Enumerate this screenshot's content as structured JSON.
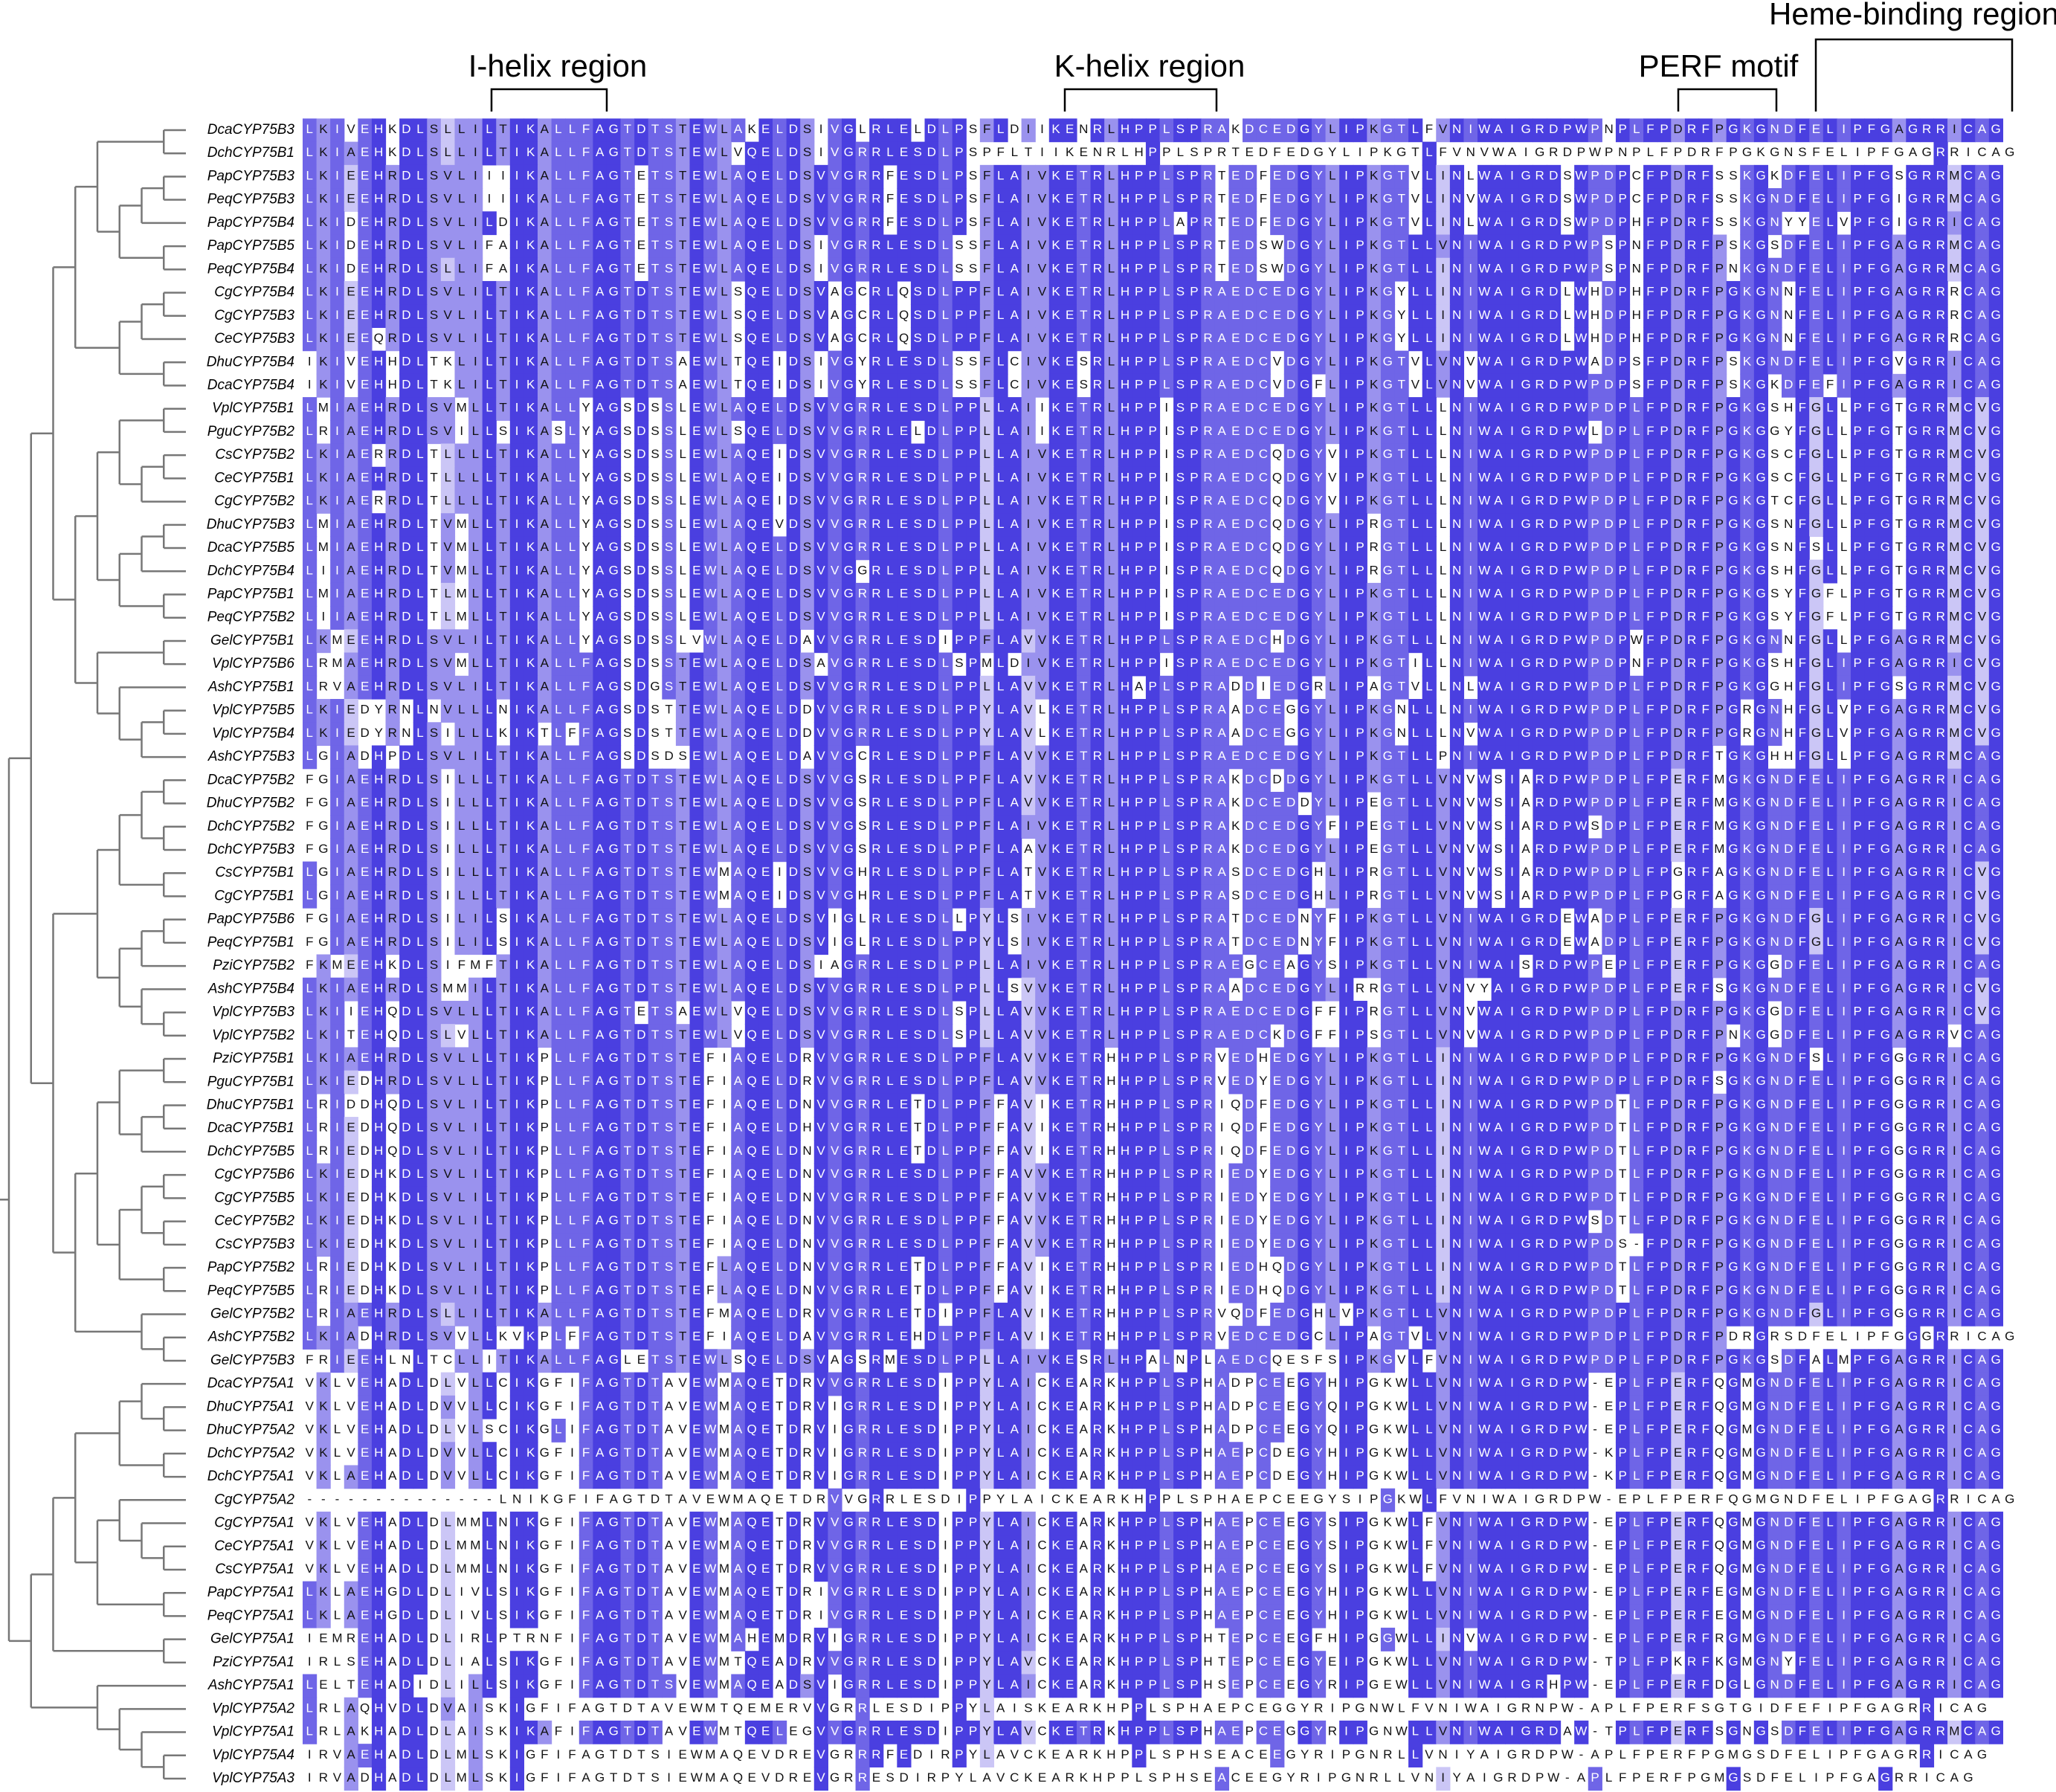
{
  "regions": [
    {
      "label": "I-helix region"
    },
    {
      "label": "K-helix region"
    },
    {
      "label": "PERF motif"
    },
    {
      "label": "Heme-binding region"
    }
  ],
  "alignment": {
    "rows": [
      {
        "name": "DcaCYP75B3",
        "sequence": "LKIVEHKDLSLLILTIKALLFAGTDTSTEWLAKELDSIVGLRLELDLPSFLDIIKENRLHPPLSPRAKDCEDGYLIPKGTLFVNIWAIGRDPWPNPLFPDRFPGKGNDFELIPFGAGRRICAG"
      },
      {
        "name": "DchCYP75B1",
        "sequence": "LKIAEHKDLSLLILTIKALLFAGTDTSTEWLVQELDSIVGRRLESDLPSPFLTIIKENRLHPPLSPRTEDFEDGYLIPKGTLFVNVWAIGRDPWPNPLFPDRFPGKGNSFELIPFGAGRRICAG"
      },
      {
        "name": "PapCYP75B3",
        "sequence": "LKIEEHRDLSVLIIIIKALLFAGTETSTEWLAQELDSVVGRRFESDLPSFLAIVKETRLHPPLSPRTEDFEDGYLIPKGTVLINLWAIGRDSWPDPCFPDRFSSKGKDFELIPFGSGRRMCAG"
      },
      {
        "name": "PeqCYP75B3",
        "sequence": "LKIEEHRDLSVLIIIIKALLFAGTETSTEWLAQELDSVVGRRFESDLPSFLAIVKETRLHPPLSPRTEDFEDGYLIPKGTVLINVWAIGRDSWPDPCFPDRFSSKGNDFELIPFGIGRRMCAG"
      },
      {
        "name": "PapCYP75B4",
        "sequence": "LKIDEHRDLSVLILDIKALLFAGTETSTEWLAQELDSVVGRRFESDLPSFLAIVKETRLHPPLAPRTEDFEDGYLIPKGTVLINLWAIGRDSWPDPHFPDRFSSKGNYYELVPFGIGRRICAG"
      },
      {
        "name": "PapCYP75B5",
        "sequence": "LKIDEHRDLSVLIFAIKALLFAGTETSTEWLAQELDSIVGRRLESDLSSFLAIVKETRLHPPLSPRTEDSWDGYLIPKGTLLVNIWAIGRDPWPSPNFPDRFPSKGSDFELIPFGAGRRMCAG"
      },
      {
        "name": "PeqCYP75B4",
        "sequence": "LKIDEHRDLSLLIFAIKALLFAGTETSTEWLAQELDSIVGRRLESDLSSFLAIVKETRLHPPLSPRTEDSWDGYLIPKGTLLINIWAIGRDPWPSPNFPDRFPNKGNDFELIPFGAGRRMCAG"
      },
      {
        "name": "CgCYP75B4",
        "sequence": "LKIEEHRDLSVLILTIKALLFAGTDTSTEWLSQELDSVAGCRLQSDLPPFLAIVKETRLHPPLSPRAEDCEDGYLIPKGYLLINIWAIGRDLWHDPHFPDRFPGKGNNFELIPFGAGRRRCAG"
      },
      {
        "name": "CgCYP75B3",
        "sequence": "LKIEEHRDLSVLILTIKALLFAGTDTSTEWLSQELDSVAGCRLQSDLPPFLAIVKETRLHPPLSPRAEDCEDGYLIPKGYLLINIWAIGRDLWHDPHFPDRFPGKGNNFELIPFGAGRRRCAG"
      },
      {
        "name": "CeCYP75B3",
        "sequence": "LKIEEQRDLSVLILTIKALLFAGTDTSTEWLSQELDSVAGCRLQSDLPPFLAIVKETRLHPPLSPRAEDCEDGYLIPKGYLLINIWAIGRDLWHDPHFPDRFPGKGNNFELIPFGAGRRRCAG"
      },
      {
        "name": "DhuCYP75B4",
        "sequence": "IKIVEHHDLTKLILTIKALLFAGTDTSAEWLTQEIDSIVGYRLESDLSSFLCIVKESRLHPPLSPRAEDCVDGYLIPKGTVLVNVWAIGRDPWADPSFPDRFPSKGNDFELIPFGVGRRICAG"
      },
      {
        "name": "DcaCYP75B4",
        "sequence": "IKIVEHHDLTKLILTIKALLFAGTDTSAEWLTQEIDSIVGYRLESDLSSFLCIVKESRLHPPLSPRAEDCVDGFLIPKGTVLVNVWAIGRDPWPDPSFPDRFPSKGKDFEFIPFGAGRRICAG"
      },
      {
        "name": "VplCYP75B1",
        "sequence": "LMIAEHRDLSVMLLTIKALLYAGSDSSLEWLAQELDSVVGRRLESDLPPLLAIIKETRLHPPISPRAEDCEDGYLIPKGTLLLNIWAIGRDPWPDPLFPDRFPGKGSHFGLLPFGTGRRMCVG"
      },
      {
        "name": "PguCYP75B2",
        "sequence": "LRIAEHRDLSVILLSIKASLYAGSDSSLEWLSQELDSVVGRRLELDLPPLLAIIKETRLHPPISPRAEDCEDGYLIPKGTLLLNIWAIGRDPWLDPLFPDRFPGKGGYFGLLPFGTGRRMCVG"
      },
      {
        "name": "CsCYP75B2",
        "sequence": "LKIAERRDLTLLLLTIKALLYAGSDSSLEWLAQEIDSVVGRRLESDLPPLLAIVKETRLHPPISPRAEDCQDGYVIPKGTLLLNIWAIGRDPWPDPLFPDRFPGKGSCFGLLPFGTGRRMCVG"
      },
      {
        "name": "CeCYP75B1",
        "sequence": "LKIAEHRDLTLLLLTIKALLYAGSDSSLEWLAQEIDSVVGRRLESDLPPLLAIVKETRLHPPISPRAEDCQDGYVIPKGTLLLNIWAIGRDPWPDPLFPDRFPGKGSCFGLLPFGTGRRMCVG"
      },
      {
        "name": "CgCYP75B2",
        "sequence": "LKIAERRDLTLLLLTIKALLYAGSDSSLEWLAQEIDSVVGRRLESDLPPLLAIVKETRLHPPISPRAEDCQDGYVIPKGTLLLNIWAIGRDPWPDPLFPDRFPGKGTCFGLLPFGTGRRMCVG"
      },
      {
        "name": "DhuCYP75B3",
        "sequence": "LMIAEHRDLTVMLLTIKALLYAGSDSSLEWLAQEVDSVVGRRLESDLPPLLAIVKETRLHPPISPRAEDCQDGYLIPRGTLLLNIWAIGRDPWPDPLFPDRFPGKGSNFGLLPFGTGRRMCVG"
      },
      {
        "name": "DcaCYP75B5",
        "sequence": "LMIAEHRDLTVMLLTIKALLYAGSDSSLEWLAQELDSVVGRRLESDLPPLLAIVKETRLHPPISPRAEDCQDGYLIPRGTLLLNIWAIGRDPWPDPLFPDRFPGKGSNFSLLPFGTGRRMCVG"
      },
      {
        "name": "DchCYP75B4",
        "sequence": "LIIAEHRDLTVMLLTIKALLYAGSDSSLEWLAQELDSVVGGRLESDLPPLLAIVKETRLHPPISPRAEDCQDGYLIPRGTLLLNIWAIGRDPWPDPLFPDRFPGKGSHFGLLPFGTGRRMCVG"
      },
      {
        "name": "PapCYP75B1",
        "sequence": "LMIAEHRDLTLMLLTIKALLYAGSDSSLEWLAQELDSVVGRRLESDLPPLLAIVKETRLHPPISPRAEDCEDGYLIPKGTLLLNIWAIGRDPWPDPLFPDRFPGKGSYFGFLPFGTGRRMCVG"
      },
      {
        "name": "PeqCYP75B2",
        "sequence": "LIIAEHRDLTLMLLTIKALLYAGSDSSLEWLAQELDSVVGRRLESDLPPLLAIVKETRLHPPISPRAEDCEDGYLIPKGTLLLNIWAIGRDPWPDPLFPDRFPGKGSYFGFLPFGTGRRMCVG"
      },
      {
        "name": "GelCYP75B1",
        "sequence": "LKMEEHRDLSVLILTIKALLYAGSDSSLVWLAQELDAVVGRRLESDIPPFLAVVKETRLHPPLSPRAEDCHDGYLIPKGTLLLNIWAIGRDPWPDPWFPDRFPGKGNNFGLLPFGAGRRMCVG"
      },
      {
        "name": "VplCYP75B6",
        "sequence": "LRMAEHRDLSVMLLTIKALLFAGSDSSTEWLAQELDSAVGRRLESDLSPMLDIVKETRLHPPISPRAEDCEDGYLIPKGTILLNIWAIGRDPWPDPNFPDRFPGKGSHFGLIPFGAGRRICVG"
      },
      {
        "name": "AshCYP75B1",
        "sequence": "LRVAEHRDLSVLILTIKALLFAGSDGSTEWLAQELDSVVGRRLESDLPPLLAVVKETRLHAPLSPRADDIEDGRLIPAGTVLLNLWAIGRDPWPDPLFPDRFPGKGGHFGLIPFGSGRRMCVG"
      },
      {
        "name": "VplCYP75B5",
        "sequence": "LKIEDYRNLNVLLLNIKALLFAGSDSTTEWLAQELDDVVGRRLESDLPPYLAVLKETRLHPPLSPRAADCEGGYLIPKGNLLLNIWAIGRDPWPDPLFPDRFPGRGNHFGLVPFGAGRRMCVG"
      },
      {
        "name": "VplCYP75B4",
        "sequence": "LKIEDYRNLSILLLKIKTLFFAGSDSTTEWLAQELDDVVGRRLESDLPPYLAVLKETRLHPPLSPRAADCEGGYLIPKGNLLLNVWAIGRDPWPDPLFPDRFPGRGNHFGLVPFGAGRRMCVG"
      },
      {
        "name": "AshCYP75B3",
        "sequence": "LGIADHPDLSVLILTIKALLFAGSDSDSEWLAQELDAVVGCRLESDLPPFLAVVKETRLHPPLSPRAEDCEDGYLIPKGTLLPNIWAIGRDPWPDPLFPDRFTGKGHHFGLLPFGAGRRMCAG"
      },
      {
        "name": "DcaCYP75B2",
        "sequence": "FGIAEHRDLSILLLTIKALLFAGTDTSTEWLAQELDSVVGSRLESDLPPFLAVVKETRLHPPLSPRAKDCDDGYLIPKGTLLVNVWSIARDPWPDPLFPERFMGKGNDFELIPFGAGRRICAG"
      },
      {
        "name": "DhuCYP75B2",
        "sequence": "FGIAEHRDLSILLLTIKALLFAGTDTSTEWLAQELDSVVGSRLESDLPPFLAVVKETRLHPPLSPRAKDCEDDYLIPEGTLLVNVWSIARDPWPDPLFPERFMGKGNDFELIPFGAGRRICAG"
      },
      {
        "name": "DchCYP75B2",
        "sequence": "FGIAEHRDLSILLLTIKALLFAGTDTSTEWLAQELDSVVGSRLESDLPPFLAIVKETRLHPPLSPRAKDCEDGYFIPEGTLLVNVWSIARDPWSDPLFPERFMGKGNDFELIPFGAGRRICAG"
      },
      {
        "name": "DchCYP75B3",
        "sequence": "FGIAEHRDLSILLLTIKALLFAGTDTSTEWLAQELDSVVGSRLESDLPPFLAAVKETRLHPPLSPRAKDCEDGYLIPEGTLLVNVWSIARDPWPDPLFPERFMGKGNDFELIPFGAGRRICAG"
      },
      {
        "name": "CsCYP75B1",
        "sequence": "LGIAEHRDLSILLLTIKALLFAGTDTSTEWMAQEIDSVVGHRLESDLPPFLATVKETRLHPPLSPRASDCEDGHLIPRGTLLVNVWSIARDPWPDPLFPGRFAGKGNDFELIPFGAGRRICVG"
      },
      {
        "name": "CgCYP75B1",
        "sequence": "LGIAEHRDLSILLLTIKALLFAGTDTSTEWMAQEIDSVVGHRLESDLPPFLATVKETRLHPPLSPRASDCEDGHLIPRGTLLVNVWSIARDPWPDPLFPGRFAGKGNDFELIPFGAGRRICVG"
      },
      {
        "name": "PapCYP75B6",
        "sequence": "FGIAEHRDLSILILSIKALLFAGTDTSTEWLAQELDSVIGLRLESDLLPYLSIVKETRLHPPLSPRATDCEDNYFIPKGTLLVNIWAIGRDEWADPLFPERFPGKGNDFGLIPFGAGRRICVG"
      },
      {
        "name": "PeqCYP75B1",
        "sequence": "FGIAEHRDLSILILSIKALLFAGTDTSTEWLAQELDSVIGLRLESDLPPYLSIVKETRLHPPLSPRATDCEDNYFIPKGTLLVNIWAIGRDEWADPLFPERFPGKGNDFGLIPFGAGRRICVG"
      },
      {
        "name": "PziCYP75B2",
        "sequence": "FKMEEHKDLSIFMFTIKALLFAGTDTSTEWLAQELDSIAGRRLESDLPPLLAIVKETRLHPPLSPRAEGCEAGYSIPKGTLLVNIWAISRDPWPEPLFPERFPGKGGDFELIPFGAGRRICAG"
      },
      {
        "name": "AshCYP75B4",
        "sequence": "LKIAEHRDLSMMILTIKALLFAGTDTSTEWLAQELDSVVGRRLESDLPPLLSVVKETRLHPPLSPRAADCEDGYLIRRGTLLVNVYAIGRDPWPDPLFPERFSGKGNDFELIPFGAGRRICVG"
      },
      {
        "name": "VplCYP75B3",
        "sequence": "LKIIEHQDLSVLLLTIKALLFAGTETSAEWLVQELDSVVGRRLESDLSPLLAVVKETRLHPPLSPRAEDCEDGFFIPRGTLLVNVWAIGRDPWPDPLFPDRFPGKGGDFELIPFGAGRRICVG"
      },
      {
        "name": "VplCYP75B2",
        "sequence": "LKITEHQDLSLVLLTIKALLFAGTDTSTEWLVQELDSVVGRRLESDLSPLLAVVKETRLHPPLSPRAEDCKDGFFIPSGTLLVNVWAIGRDPWPDPLFPDRFPNKGGDFELIPFGAGRRVCAG"
      },
      {
        "name": "PziCYP75B1",
        "sequence": "LKIAEHRDLSVLLLTIKPLLFAGTDTSTEFIAQELDRVVGRRLESDLPPFLAVVKETRHHPPLSPRVEDHEDGYLIPKGTLLINIWAIGRDPWPDPLFPDRFPGKGNDFSLIPFGGGRRICAG"
      },
      {
        "name": "PguCYP75B1",
        "sequence": "LKIEDHRDLSVLLLTIKPLLFAGTDTSTEFIAQELDRVVGRRLESDLPPFLAVVKETRHHPPLSPRVEDYEDGYLIPKGTLLINIWAIGRDPWPDPLFPDRFSGKGNDFELIPFGGGRRICAG"
      },
      {
        "name": "DhuCYP75B1",
        "sequence": "LRIDDHQDLSVLILTIKPLLFAGTDTSTEFIAQELDNVVGRRLETDLPPFFAVIKETRHHPPLSPRIQDFEDGYLIPKGTLLINIWAIGRDPWPDTLFPDRFPGKGNDFELIPFGGGRRICAG"
      },
      {
        "name": "DcaCYP75B1",
        "sequence": "LRIEDHQDLSVLILTIKPLLFAGTDTSTEFIAQELDHVVGRRLETDLPPFFAVIKETRHHPPLSPRIQDFEDGYLIPKGTLLINIWAIGRDPWPDTLFPDRFPGKGNDFELIPFGGGRRICAG"
      },
      {
        "name": "DchCYP75B5",
        "sequence": "LRIEDHQDLSVLILTIKPLLFAGTDTSTEFIAQELDNVVGRRLETDLPPFFAVIKETRHHPPLSPRIQDFEDGYLIPKGTLLINIWAIGRDPWPDTLFPDRFPGKGNDFELIPFGGGRRICAG"
      },
      {
        "name": "CgCYP75B6",
        "sequence": "LKIEDHKDLSVLILTIKPLLFAGTDTSTEFIAQELDNVVGRRLESDLPPFFAVVKETRHHPPLSPRIEDYEDGYLIPKGTLLINIWAIGRDPWPDTLFPDRFPGKGNDFELIPFGGGRRICAG"
      },
      {
        "name": "CgCYP75B5",
        "sequence": "LKIEDHKDLSVLILTIKPLLFAGTDTSTEFIAQELDNVVGRRLESDLPPFFAVVKETRHHPPLSPRIEDYEDGYLIPKGTLLINIWAIGRDPWPDTLFPDRFPGKGNDFELIPFGGGRRICAG"
      },
      {
        "name": "CeCYP75B2",
        "sequence": "LKIEDHKDLSVLILTIKPLLFAGTDTSTEFIAQELDNVVGRRLESDLPPFFAVVKETRHHPPLSPRIEDYEDGYLIPKGTLLINIWAIGRDPWSDTLFPDRFPGKGNDFELIPFGGGRRICAG"
      },
      {
        "name": "CsCYP75B3",
        "sequence": "LKIEDHKDLSVLILTIKPLLFAGTDTSTEFIAQELDNVVGRRLESDLPPFFAVVKETRHHPPLSPRIEDYEDGYLIPKGTLLINIWAIGRDPWPDS-FPDRFPGKGNDFELIPFGGGRRICAG"
      },
      {
        "name": "PapCYP75B2",
        "sequence": "LRIEDHKDLSVLILTIKPLLFAGTDTSTEFLAQELDNVVGRRLETDLPPFFAVIKETRHHPPLSPRIEDHQDGYLIPKGTLLINIWAIGRDPWPDTLFPDRFPGKGNDFELIPFGGGRRICAG"
      },
      {
        "name": "PeqCYP75B5",
        "sequence": "LRIEDHKDLSVLILTIKPLLFAGTDTSTEFLAQELDNVVGRRLETDLPPFFAVIKETRHHPPLSPRIEDHQDGYLIPKGTLLINIWAIGRDPWPDTLFPDRFPGKGNDFELIPFGGGRRICAG"
      },
      {
        "name": "GelCYP75B2",
        "sequence": "LRIAEHRDLSLLILTIKALLFAGTDTSTEFMAQELDRVVGRRLETDIPPFLAVIKETRHHPPLSPRVQDFEDGHLVPKGTLLVNIWAIGRDPWPDPLFPDRFPGKGNDFGLIPFGGGRRICAG"
      },
      {
        "name": "AshCYP75B2",
        "sequence": "LKIADHRDLSVVLLKVKPLFFAGTDTSTEFIAQELDAVVGRRLEHDLPPFLAVIKETRHHPPLSPRVEDCEDGCLIPAGTVLVNIWAIGRDPWPDPLFPDRFPDRGRSDFELIPFGGGRRICAG"
      },
      {
        "name": "GelCYP75B3",
        "sequence": "FRIEEHLNLTCLLITIKALLFAGLETSTEWLSQELDSVAGSRMESDLPPLLAIVKESRLHPALNPLAEDCQESFSIPKGVLFVNIWAIGRDPWPDPLFPDRFPGKGSDFALMPFGAGRRICAG"
      },
      {
        "name": "DcaCYP75A1",
        "sequence": "VKLVEHADLDLVLLCIKGFIFAGTDTAVEWMAQETDRVVGRRLESDIPPYLAICKEARKHPPLSPHADPCEEGYHIPGKWLLVNIWAIGRDPW-EPLFPERFQGMGNDFELIPFGAGRRICAG"
      },
      {
        "name": "DhuCYP75A1",
        "sequence": "VKLVEHADLDVVLLCIKGFIFAGTDTAVEWMAQETDRVIGRRLESDIPPYLAICKEARKHPPLSPHADPCEEGYQIPGKWLLVNIWAIGRDPW-EPLFPERFQGMGNDFELIPFGAGRRICAG"
      },
      {
        "name": "DhuCYP75A2",
        "sequence": "VKLVEHADLDLVLSCIKGLIFAGTDTAVEWMAQETDRVIGRRLESDIPPYLAICKEARKHPPLSPHADPCEEGYQIPGKWLLVNIWAIGRDPW-EPLFPERFQGMGNDFELIPFGAGRRICAG"
      },
      {
        "name": "DchCYP75A2",
        "sequence": "VKLVEHADLDVVLLCIKGFIFAGTDTAVEWMAQETDRVIGRRLESDIPPYLAICKEARKHPPLSPHAEPCDEGYHIPGKWLLVNIWAIGRDPW-KPLFPERFQGMGNDFELIPFGAGRRICAG"
      },
      {
        "name": "DchCYP75A1",
        "sequence": "VKLAEHADLDVVLLCIKGFIFAGTDTAVEWMAQETDRVIGRRLESDIPPYLAICKEARKHPPLSPHAEPCDEGYHIPGKWLLVNIWAIGRDPW-KPLFPERFQGMGNDFELIPFGAGRRICAG"
      },
      {
        "name": "CgCYP75A2",
        "sequence": "--------------LNIKGFIFAGTDTAVEWMAQETDRVVGRRLESDIPPYLAICKEARKHPPLSPHAEPCEEGYSIPGKWLFVNIWAIGRDPW-EPLFPERFQGMGNDFELIPFGAGRRICAG"
      },
      {
        "name": "CgCYP75A1",
        "sequence": "VKLVEHADLDLMMLNIKGFIFAGTDTAVEWMAQETDRVVGRRLESDIPPYLAICKEARKHPPLSPHAEPCEEGYSIPGKWLFVNIWAIGRDPW-EPLFPERFQGMGNDFELIPFGAGRRICAG"
      },
      {
        "name": "CeCYP75A1",
        "sequence": "VKLVEHADLDLMMLNIKGFIFAGTDTAVEWMAQETDRVVGRRLESDIPPYLAICKEARKHPPLSPHAEPCEEGYSIPGKWLFVNIWAIGRDPW-EPLFPERFQGMGNDFELIPFGAGRRICAG"
      },
      {
        "name": "CsCYP75A1",
        "sequence": "VKLVEHADLDLMMLNIKGFIFAGTDTAVEWMAQETDRVVGRRLESDIPPYLAICKEARKHPPLSPHAEPCEEGYSIPGKWLFVNIWAIGRDPW-EPLFPERFQGMGNDFELIPFGAGRRICAG"
      },
      {
        "name": "PapCYP75A1",
        "sequence": "LKLAEHGDLDLIVLSIKGFIFAGTDTAVEWMAQETDRIVGRRLESDIPPYLAICKEARKHPPLSPHAEPCEEGYHIPGKWLLVNIWAIGRDPW-EPLFPERFEGMGNDFELIPFGAGRRICAG"
      },
      {
        "name": "PeqCYP75A1",
        "sequence": "LKLAEHGDLDLIVLSIKGFIFAGTDTAVEWMAQETDRIVGRRLESDIPPYLAICKEARKHPPLSPHAEPCEEGYHIPGKWLLVNIWAIGRDPW-EPLFPERFEGMGNDFELIPFGAGRRICAG"
      },
      {
        "name": "GelCYP75A1",
        "sequence": "IEMREHADLDLIRLPTRNFIFAGTDTAVEWMAHEMDRVIGRRLESDIPPYLAICKEARKHPPLSPHTEPCEEGFHIPGGWLLINVWAIGRDPW-EPLFPERFRGMGNDFELIPFGAGRRICAG"
      },
      {
        "name": "PziCYP75A1",
        "sequence": "IRLSEHADLDLIALSIKGFIFAGTDTAVEWMTQEADRVVGRRLESDIPPYLAVCKEARKHPPLSPHTEPCEEGYEIPGKWLLVNIWAIGRDPW-TPLFPKRFKGMGNYFELIPFGAGRRICAG"
      },
      {
        "name": "AshCYP75A1",
        "sequence": "LELTEHADIDLILLSIKGFIFAGTDTSVEWMAQEADSVIGRRLESDIPPYLAICKEARKHPPLSPHSEPCEEGYRIPGEWLLVNIWAIGRHPW-EPLFPERFDGLGNDFELIPFGAGRRICAG"
      },
      {
        "name": "VplCYP75A2",
        "sequence": "LRLAQHVDLDVAISKIGFIFAGTDTAVEWMTQEMERVVGRRLESDIPPYLAISKEARKHPPLSPHAEPCEGGYRIPGNWLFVNIWAIGRNPW-APLFPERFSGTGIDFEFIPFGAGRRICAG"
      },
      {
        "name": "VplCYP75A1",
        "sequence": "LRLAKHADLDLAISKIKAFIFAGTDTAVEWMTQELEGVVGRRLESDIPPYLAVCKETRKHPPLSPHAEPCEGGYRIPGNWLLVNIWAIGRDAW-TPLFPERFSGNGSDFELIPFGAGRRMCAG"
      },
      {
        "name": "VplCYP75A4",
        "sequence": "IRVAEHADLDLMLSKIGFIFAGTDTSIEWMAQEVDREVGRRRFEDIRPYLAVCKEARKHPPLSPHSEACEEGYRIPGNRLLVNIYAIGRDPW-APLFPERFPGMGSDFELIPFGAGRRICAG"
      },
      {
        "name": "VplCYP75A3",
        "sequence": "IRVADHADLDLMLSKIGFIFAGTDTSIEWMAQEVDREVGRRESDIRPYLAVCKEARKHPPLSPHSEACEEGYRIPGNRLLVNIYAIGRDPW-APLFPERFPGMGSDFELIPFGAGRRICAG"
      }
    ]
  }
}
